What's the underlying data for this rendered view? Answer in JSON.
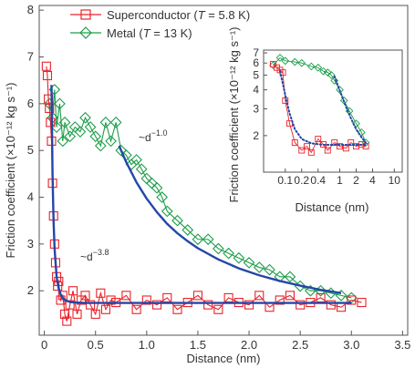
{
  "chart_data": [
    {
      "type": "scatter",
      "panel": "main",
      "xlabel": "Distance (nm)",
      "ylabel": "Friction coefficient (×10⁻¹² kg s⁻¹)",
      "xlim": [
        -0.05,
        3.55
      ],
      "ylim": [
        1.05,
        8.1
      ],
      "xticks": [
        0,
        0.5,
        1.0,
        1.5,
        2.0,
        2.5,
        3.0,
        3.5
      ],
      "xtick_labels": [
        "0",
        "0.5",
        "1.0",
        "1.5",
        "2.0",
        "2.5",
        "3.0",
        "3.5"
      ],
      "yticks": [
        2,
        3,
        4,
        5,
        6,
        7,
        8
      ],
      "ytick_labels": [
        "2",
        "3",
        "4",
        "5",
        "6",
        "7",
        "8"
      ],
      "legend_position": "top-left",
      "series": [
        {
          "name": "Superconductor (T = 5.8 K)",
          "legend": {
            "prefix": "Superconductor (",
            "var": "T",
            "suffix": " = 5.8 K)"
          },
          "color": "#e8232a",
          "marker": "square",
          "x": [
            0.02,
            0.03,
            0.04,
            0.05,
            0.06,
            0.07,
            0.08,
            0.09,
            0.1,
            0.11,
            0.12,
            0.13,
            0.14,
            0.16,
            0.18,
            0.2,
            0.22,
            0.25,
            0.28,
            0.32,
            0.36,
            0.4,
            0.45,
            0.5,
            0.55,
            0.6,
            0.65,
            0.7,
            0.8,
            0.9,
            1.0,
            1.1,
            1.2,
            1.3,
            1.4,
            1.5,
            1.6,
            1.7,
            1.8,
            1.9,
            2.0,
            2.1,
            2.2,
            2.3,
            2.4,
            2.5,
            2.6,
            2.7,
            2.8,
            2.9,
            3.0,
            3.1
          ],
          "y": [
            6.8,
            6.6,
            6.1,
            5.9,
            5.6,
            5.2,
            4.3,
            3.6,
            3.0,
            2.6,
            2.3,
            2.1,
            2.2,
            1.8,
            1.9,
            1.5,
            1.35,
            1.7,
            2.0,
            1.5,
            1.8,
            1.9,
            1.7,
            1.5,
            1.95,
            1.6,
            1.8,
            1.75,
            1.9,
            1.6,
            1.8,
            1.7,
            1.85,
            1.6,
            1.75,
            1.9,
            1.7,
            1.6,
            1.85,
            1.75,
            1.7,
            1.9,
            1.65,
            1.8,
            1.9,
            1.7,
            1.75,
            1.85,
            1.7,
            1.65,
            1.8,
            1.75
          ]
        },
        {
          "name": "Metal (T = 13 K)",
          "legend": {
            "prefix": "Metal (",
            "var": "T",
            "suffix": " = 13 K)"
          },
          "color": "#1e9e4a",
          "marker": "diamond",
          "x": [
            0.05,
            0.08,
            0.1,
            0.12,
            0.15,
            0.18,
            0.2,
            0.25,
            0.3,
            0.35,
            0.4,
            0.45,
            0.5,
            0.55,
            0.6,
            0.65,
            0.7,
            0.75,
            0.8,
            0.85,
            0.9,
            0.95,
            1.0,
            1.05,
            1.1,
            1.15,
            1.2,
            1.3,
            1.4,
            1.5,
            1.6,
            1.7,
            1.8,
            1.9,
            2.0,
            2.1,
            2.2,
            2.3,
            2.4,
            2.5,
            2.6,
            2.7,
            2.8,
            2.9,
            3.0
          ],
          "y": [
            6.0,
            5.7,
            6.3,
            5.5,
            6.0,
            5.2,
            5.6,
            5.3,
            5.5,
            5.4,
            5.7,
            5.5,
            5.3,
            5.1,
            5.6,
            5.2,
            5.6,
            5.0,
            4.9,
            4.7,
            4.8,
            4.6,
            4.4,
            4.3,
            4.2,
            4.0,
            3.7,
            3.5,
            3.3,
            3.1,
            3.1,
            2.9,
            2.8,
            2.7,
            2.6,
            2.5,
            2.45,
            2.3,
            2.3,
            2.1,
            2.0,
            2.0,
            1.95,
            1.9,
            1.85
          ]
        }
      ],
      "fits": [
        {
          "label": "~d",
          "exp": "−3.8",
          "color": "#2546a8",
          "x": [
            0.07,
            0.08,
            0.09,
            0.1,
            0.12,
            0.14,
            0.16,
            0.18,
            0.2,
            0.25,
            0.3,
            0.4,
            0.6,
            1.0,
            1.5,
            2.0,
            2.5,
            3.0
          ],
          "y": [
            6.4,
            4.5,
            3.5,
            2.9,
            2.3,
            2.05,
            1.92,
            1.85,
            1.8,
            1.76,
            1.75,
            1.74,
            1.74,
            1.74,
            1.74,
            1.74,
            1.74,
            1.74
          ]
        },
        {
          "label": "~d",
          "exp": "−1.0",
          "color": "#2546a8",
          "x": [
            0.73,
            0.8,
            0.9,
            1.0,
            1.1,
            1.2,
            1.3,
            1.4,
            1.5,
            1.7,
            1.9,
            2.1,
            2.3,
            2.5,
            2.7,
            2.9
          ],
          "y": [
            5.1,
            4.75,
            4.32,
            3.97,
            3.68,
            3.43,
            3.23,
            3.06,
            2.91,
            2.67,
            2.48,
            2.33,
            2.21,
            2.11,
            2.02,
            1.95
          ]
        }
      ]
    },
    {
      "type": "scatter",
      "panel": "inset",
      "scale": "log-log",
      "xlabel": "Distance (nm)",
      "ylabel": "Friction coefficient (×10⁻¹² kg s⁻¹)",
      "xlim": [
        0.04,
        14
      ],
      "ylim": [
        1.15,
        7.3
      ],
      "xticks": [
        0.1,
        0.2,
        0.4,
        1,
        2,
        4,
        10
      ],
      "xtick_labels": [
        "0.1",
        "0.2",
        "0.4",
        "1",
        "2",
        "4",
        "10"
      ],
      "yticks": [
        2,
        3,
        4,
        5,
        6,
        7
      ],
      "ytick_labels": [
        "2",
        "3",
        "4",
        "5",
        "6",
        "7"
      ],
      "series": [
        {
          "name": "Superconductor (T = 5.8 K)",
          "color": "#e8232a",
          "marker": "square",
          "x": [
            0.06,
            0.07,
            0.08,
            0.09,
            0.1,
            0.12,
            0.15,
            0.2,
            0.25,
            0.3,
            0.4,
            0.5,
            0.6,
            0.8,
            1.0,
            1.3,
            1.6,
            2.0,
            2.5,
            3.0
          ],
          "y": [
            5.9,
            5.6,
            5.4,
            5.2,
            3.4,
            2.4,
            1.8,
            1.6,
            1.7,
            1.55,
            1.9,
            1.75,
            1.6,
            1.8,
            1.7,
            1.65,
            1.8,
            1.7,
            1.75,
            1.7
          ]
        },
        {
          "name": "Metal (T = 13 K)",
          "color": "#1e9e4a",
          "marker": "diamond",
          "x": [
            0.06,
            0.08,
            0.1,
            0.15,
            0.2,
            0.3,
            0.4,
            0.5,
            0.6,
            0.7,
            0.8,
            1.0,
            1.2,
            1.5,
            2.0,
            2.5,
            3.0
          ],
          "y": [
            5.8,
            6.5,
            6.2,
            6.1,
            6.0,
            5.7,
            5.6,
            5.3,
            5.2,
            5.0,
            4.6,
            4.0,
            3.4,
            2.9,
            2.4,
            2.1,
            1.8
          ]
        }
      ],
      "fits": [
        {
          "color": "#2546a8",
          "style": "dotted",
          "x": [
            0.08,
            0.09,
            0.1,
            0.12,
            0.15,
            0.2,
            0.3,
            0.5,
            1.0,
            2.0,
            3.0
          ],
          "y": [
            5.3,
            4.4,
            3.7,
            2.8,
            2.2,
            1.9,
            1.78,
            1.74,
            1.74,
            1.74,
            1.74
          ]
        },
        {
          "color": "#2546a8",
          "style": "dotted",
          "x": [
            0.8,
            1.0,
            1.3,
            1.6,
            2.0,
            2.5,
            3.0
          ],
          "y": [
            4.9,
            3.95,
            3.1,
            2.6,
            2.2,
            1.95,
            1.8
          ]
        }
      ]
    }
  ]
}
